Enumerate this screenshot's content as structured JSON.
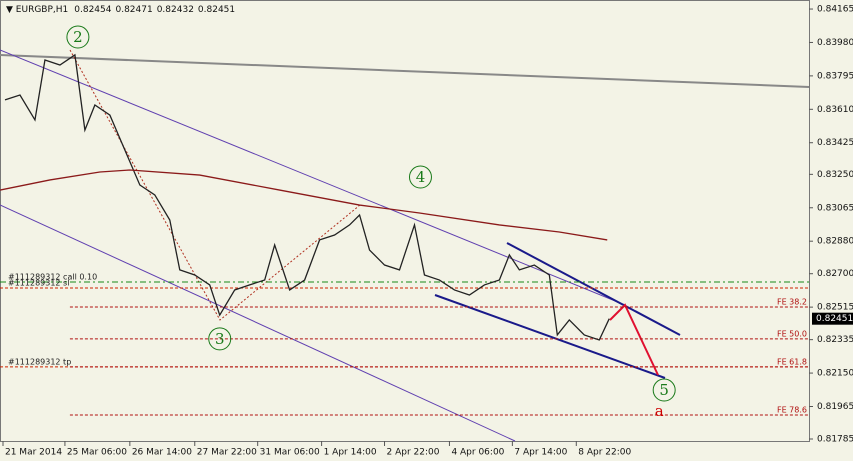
{
  "chart_data": {
    "type": "line",
    "symbol": "EURGBP,H1",
    "ohlc": [
      0.82454,
      0.82471,
      0.82432,
      0.82451
    ],
    "xlim": [
      0,
      405
    ],
    "ylim": [
      0.81774,
      0.84215
    ],
    "yticks": [
      0.84165,
      {
        "value": 0.8398,
        "label": "0.83980"
      },
      0.83795,
      {
        "value": 0.8361,
        "label": "0.83610"
      },
      0.83425,
      {
        "value": 0.8325,
        "label": "0.83250"
      },
      0.83065,
      {
        "value": 0.8288,
        "label": "0.82880"
      },
      {
        "value": 0.827,
        "label": "0.82700"
      },
      0.82515,
      0.82335,
      {
        "value": 0.8215,
        "label": "0.82150"
      },
      0.81965,
      0.81785
    ],
    "xticks": [
      {
        "value": 1.5,
        "label": "21 Mar 2014"
      },
      {
        "value": 32.5,
        "label": "25 Mar 06:00"
      },
      {
        "value": 65,
        "label": "26 Mar 14:00"
      },
      {
        "value": 97.5,
        "label": "27 Mar 22:00"
      },
      {
        "value": 129,
        "label": "31 Mar 06:00"
      },
      {
        "value": 161,
        "label": "1 Apr 14:00"
      },
      {
        "value": 192.5,
        "label": "2 Apr 22:00"
      },
      {
        "value": 225,
        "label": "4 Apr 06:00"
      },
      {
        "value": 256.5,
        "label": "7 Apr 14:00"
      },
      {
        "value": 288.5,
        "label": "8 Apr 22:00"
      }
    ],
    "series": [
      {
        "color": "#222222",
        "x": [
          2.5,
          10,
          17.5,
          22.5,
          30,
          37.5,
          42.5,
          47.5,
          55,
          62.5,
          70,
          77.5,
          85,
          90,
          97.5,
          105,
          110,
          117.5,
          125,
          132.5,
          137.5,
          145,
          152.5,
          160,
          167.5,
          175,
          180,
          185,
          192.5,
          200,
          207.5,
          212.5,
          220,
          227.5,
          235,
          242.5,
          250,
          255,
          260,
          267.5,
          275,
          279,
          285,
          292.5,
          300,
          305
        ],
        "values": [
          0.83662,
          0.83689,
          0.83551,
          0.83883,
          0.83855,
          0.83911,
          0.83495,
          0.83634,
          0.83578,
          0.83385,
          0.83191,
          0.83136,
          0.82997,
          0.82721,
          0.82693,
          0.82638,
          0.82471,
          0.8261,
          0.82638,
          0.82665,
          0.82859,
          0.8261,
          0.82665,
          0.82887,
          0.82914,
          0.8297,
          0.83025,
          0.82831,
          0.82748,
          0.82721,
          0.8297,
          0.82693,
          0.82665,
          0.8261,
          0.82582,
          0.82638,
          0.82665,
          0.82804,
          0.82721,
          0.82748,
          0.82693,
          0.82361,
          0.82444,
          0.82361,
          0.82333,
          0.82451
        ]
      },
      {
        "color": "#8b1a1a",
        "x": [
          0,
          25,
          50,
          65,
          100,
          140,
          180,
          210,
          250,
          280,
          304
        ],
        "values": [
          0.83163,
          0.83219,
          0.83263,
          0.83274,
          0.83246,
          0.83163,
          0.8308,
          0.83036,
          0.8297,
          0.82931,
          0.82887
        ]
      }
    ],
    "levels": [
      {
        "label": "#111289312 call 0.10",
        "value": 0.82654,
        "color": "#1a8a1a",
        "start": 0
      },
      {
        "label": "#111289312 sl",
        "value": 0.82621,
        "color": "#cc2200",
        "start": 0
      },
      {
        "label": "#111289312 tp",
        "value": 0.82184,
        "color": "#cc2200",
        "start": 0
      },
      {
        "label": "FE 38.2",
        "value": 0.82516,
        "color": "#b01010",
        "start": 35
      },
      {
        "label": "FE 50.0",
        "value": 0.82339,
        "color": "#b01010",
        "start": 35
      },
      {
        "label": "FE 61.8",
        "value": 0.82184,
        "color": "#b01010",
        "start": 35
      },
      {
        "label": "FE 78.6",
        "value": 0.81918,
        "color": "#b01010",
        "start": 35
      }
    ],
    "waves": [
      {
        "text": "2",
        "x": 39,
        "y": 0.8401,
        "color": "#1a7a1a",
        "circled": true
      },
      {
        "text": "3",
        "x": 110,
        "y": 0.82339,
        "color": "#1a7a1a",
        "circled": true
      },
      {
        "text": "4",
        "x": 210.5,
        "y": 0.83235,
        "color": "#1a7a1a",
        "circled": true
      },
      {
        "text": "5",
        "x": 332.5,
        "y": 0.82056,
        "color": "#1a7a1a",
        "circled": true
      },
      {
        "text": "a",
        "x": 330,
        "y": 0.8194,
        "color": "#cc0000",
        "circled": false
      }
    ]
  }
}
